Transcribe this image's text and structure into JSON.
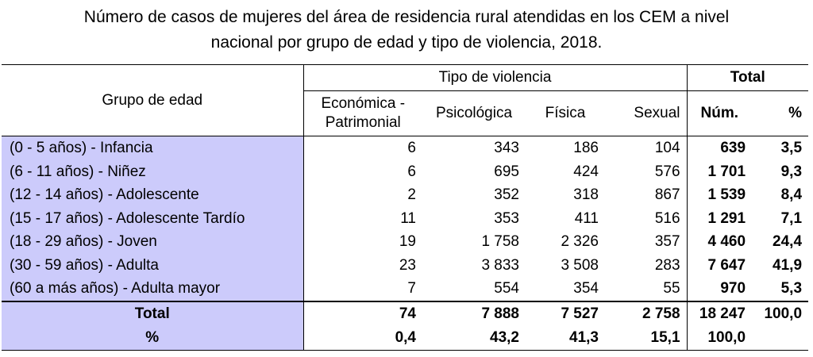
{
  "title": {
    "line1": "Número de casos de mujeres del área de residencia rural atendidas en los CEM a nivel",
    "line2": "nacional por grupo de edad y tipo de violencia, 2018."
  },
  "header": {
    "grupo_label": "Grupo de edad",
    "tipo_label": "Tipo de violencia",
    "total_label": "Total",
    "cols": {
      "economica_line1": "Económica -",
      "economica_line2": "Patrimonial",
      "psicologica": "Psicológica",
      "fisica": "Física",
      "sexual": "Sexual",
      "num": "Núm.",
      "pct": "%"
    }
  },
  "rows": [
    {
      "grupo": "(0 - 5 años) - Infancia",
      "economica": "6",
      "psicologica": "343",
      "fisica": "186",
      "sexual": "104",
      "num": "639",
      "pct": "3,5"
    },
    {
      "grupo": "(6 - 11 años) - Niñez",
      "economica": "6",
      "psicologica": "695",
      "fisica": "424",
      "sexual": "576",
      "num": "1 701",
      "pct": "9,3"
    },
    {
      "grupo": "(12 - 14 años) - Adolescente",
      "economica": "2",
      "psicologica": "352",
      "fisica": "318",
      "sexual": "867",
      "num": "1 539",
      "pct": "8,4"
    },
    {
      "grupo": "(15 - 17 años) - Adolescente Tardío",
      "economica": "11",
      "psicologica": "353",
      "fisica": "411",
      "sexual": "516",
      "num": "1 291",
      "pct": "7,1"
    },
    {
      "grupo": "(18 - 29 años) - Joven",
      "economica": "19",
      "psicologica": "1 758",
      "fisica": "2 326",
      "sexual": "357",
      "num": "4 460",
      "pct": "24,4"
    },
    {
      "grupo": "(30 - 59 años) - Adulta",
      "economica": "23",
      "psicologica": "3 833",
      "fisica": "3 508",
      "sexual": "283",
      "num": "7 647",
      "pct": "41,9"
    },
    {
      "grupo": "(60 a más años) - Adulta mayor",
      "economica": "7",
      "psicologica": "554",
      "fisica": "354",
      "sexual": "55",
      "num": "970",
      "pct": "5,3"
    }
  ],
  "totals": {
    "label": "Total",
    "economica": "74",
    "psicologica": "7 888",
    "fisica": "7 527",
    "sexual": "2 758",
    "num": "18 247",
    "pct": "100,0"
  },
  "percents": {
    "label": "%",
    "economica": "0,4",
    "psicologica": "43,2",
    "fisica": "41,3",
    "sexual": "15,1",
    "num": "100,0",
    "pct": ""
  }
}
